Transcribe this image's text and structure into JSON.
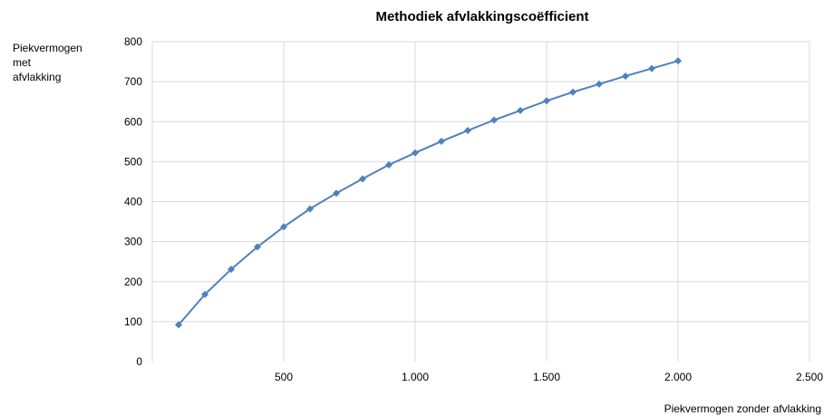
{
  "chart_data": {
    "type": "line",
    "title": "Methodiek afvlakkingscoëfficient",
    "xlabel": "Piekvermogen zonder afvlakking",
    "ylabel_lines": [
      "Piekvermogen",
      "met",
      "afvlakking"
    ],
    "xlim": [
      0,
      2500
    ],
    "ylim": [
      0,
      800
    ],
    "x_ticks": [
      500,
      1000,
      1500,
      2000,
      2500
    ],
    "x_tick_labels": [
      "500",
      "1.000",
      "1.500",
      "2.000",
      "2.500"
    ],
    "y_ticks": [
      0,
      100,
      200,
      300,
      400,
      500,
      600,
      700,
      800
    ],
    "y_tick_labels": [
      "0",
      "100",
      "200",
      "300",
      "400",
      "500",
      "600",
      "700",
      "800"
    ],
    "grid": true,
    "legend": "none",
    "series": [
      {
        "color": "#4f81bd",
        "marker": "diamond",
        "x": [
          100,
          200,
          300,
          400,
          500,
          600,
          700,
          800,
          900,
          1000,
          1100,
          1200,
          1300,
          1400,
          1500,
          1600,
          1700,
          1800,
          1900,
          2000
        ],
        "y": [
          92,
          168,
          231,
          287,
          337,
          382,
          421,
          457,
          492,
          522,
          551,
          578,
          604,
          628,
          652,
          674,
          694,
          714,
          733,
          752
        ]
      }
    ]
  }
}
